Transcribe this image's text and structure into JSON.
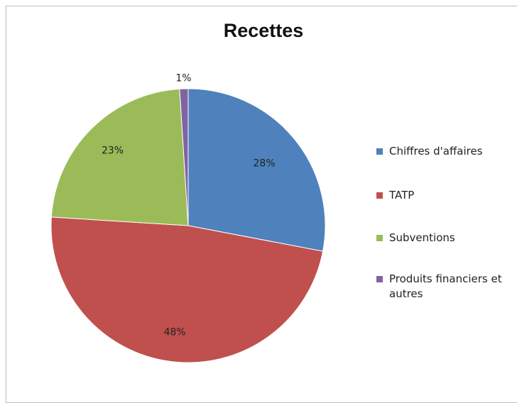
{
  "chart_data": {
    "type": "pie",
    "title": "Recettes",
    "categories": [
      "Chiffres d'affaires",
      "TATP",
      "Subventions",
      "Produits financiers et autres"
    ],
    "values": [
      28,
      48,
      23,
      1
    ],
    "labels": [
      "28%",
      "48%",
      "23%",
      "1%"
    ],
    "colors": [
      "#4f81bd",
      "#c0504d",
      "#9bbb59",
      "#8064a2"
    ],
    "legend_position": "right"
  }
}
